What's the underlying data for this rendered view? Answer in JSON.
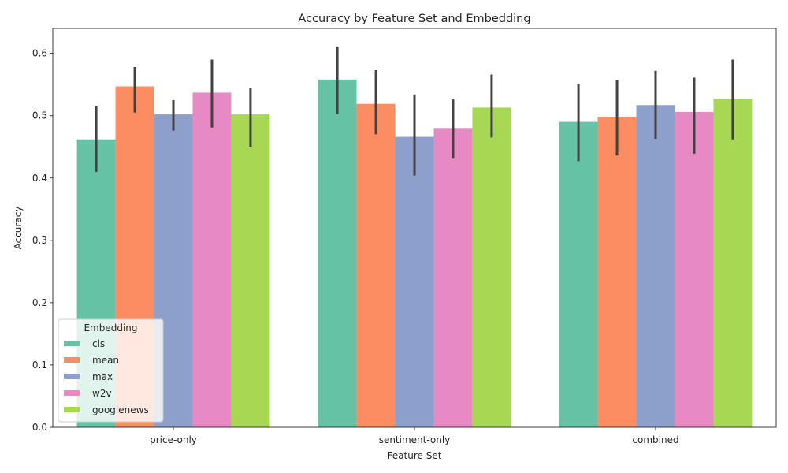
{
  "chart_data": {
    "type": "bar",
    "title": "Accuracy by Feature Set and Embedding",
    "xlabel": "Feature Set",
    "ylabel": "Accuracy",
    "categories": [
      "price-only",
      "sentiment-only",
      "combined"
    ],
    "ylim": [
      0,
      0.64
    ],
    "yticks": [
      "0.0",
      "0.1",
      "0.2",
      "0.3",
      "0.4",
      "0.5",
      "0.6"
    ],
    "grid": false,
    "legend": {
      "title": "Embedding",
      "placement": "lower-left"
    },
    "series": [
      {
        "name": "cls",
        "color": "#66c2a5",
        "values": [
          0.462,
          0.558,
          0.49
        ],
        "ci_low": [
          0.41,
          0.503,
          0.427
        ],
        "ci_high": [
          0.516,
          0.611,
          0.551
        ]
      },
      {
        "name": "mean",
        "color": "#fc8d62",
        "values": [
          0.547,
          0.519,
          0.498
        ],
        "ci_low": [
          0.505,
          0.47,
          0.436
        ],
        "ci_high": [
          0.578,
          0.573,
          0.557
        ]
      },
      {
        "name": "max",
        "color": "#8da0cb",
        "values": [
          0.502,
          0.466,
          0.517
        ],
        "ci_low": [
          0.476,
          0.404,
          0.463
        ],
        "ci_high": [
          0.525,
          0.534,
          0.572
        ]
      },
      {
        "name": "w2v",
        "color": "#e78ac3",
        "values": [
          0.537,
          0.479,
          0.506
        ],
        "ci_low": [
          0.481,
          0.431,
          0.439
        ],
        "ci_high": [
          0.59,
          0.526,
          0.561
        ]
      },
      {
        "name": "googlenews",
        "color": "#a6d854",
        "values": [
          0.502,
          0.513,
          0.527
        ],
        "ci_low": [
          0.45,
          0.465,
          0.462
        ],
        "ci_high": [
          0.544,
          0.566,
          0.59
        ]
      }
    ]
  }
}
